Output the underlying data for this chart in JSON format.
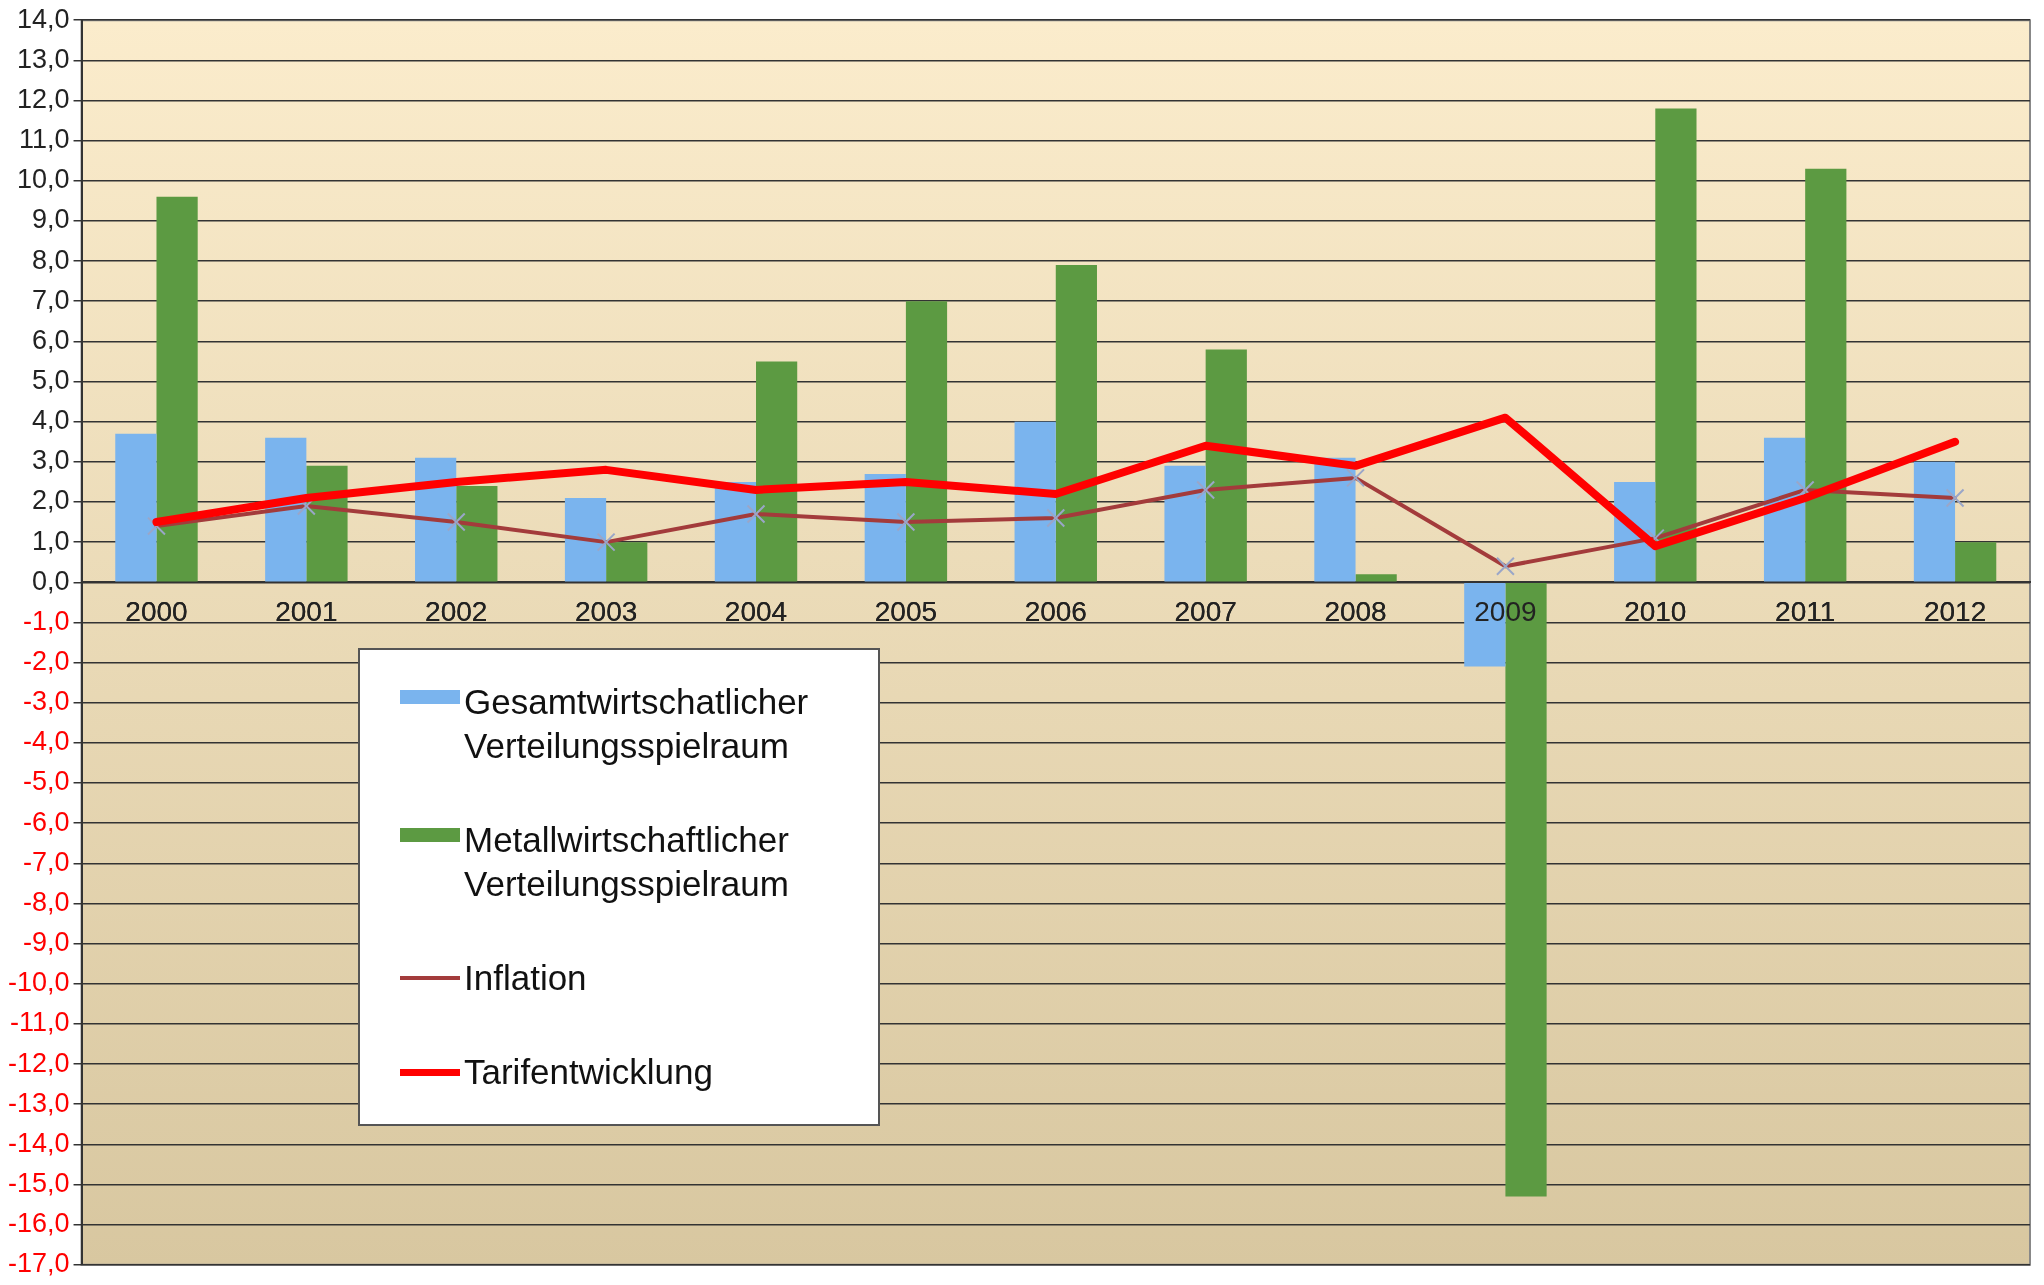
{
  "chart_data": {
    "type": "bar",
    "categories": [
      "2000",
      "2001",
      "2002",
      "2003",
      "2004",
      "2005",
      "2006",
      "2007",
      "2008",
      "2009",
      "2010",
      "2011",
      "2012"
    ],
    "series": [
      {
        "name": "Gesamtwirtschatlicher Verteilungsspielraum",
        "color": "#7ab4ee",
        "values": [
          3.7,
          3.6,
          3.1,
          2.1,
          2.5,
          2.7,
          4.0,
          2.9,
          3.1,
          -2.1,
          2.5,
          3.6,
          3.0
        ]
      },
      {
        "name": "Metallwirtschaftlicher Verteilungsspielraum",
        "color": "#5c9a42",
        "values": [
          9.6,
          2.9,
          2.4,
          1.0,
          5.5,
          7.0,
          7.9,
          5.8,
          0.2,
          -15.3,
          11.8,
          10.3,
          1.0
        ]
      },
      {
        "name": "Inflation",
        "type": "line",
        "color": "#a33b3b",
        "marker": "cross",
        "values": [
          1.4,
          1.9,
          1.5,
          1.0,
          1.7,
          1.5,
          1.6,
          2.3,
          2.6,
          0.4,
          1.1,
          2.3,
          2.1
        ]
      },
      {
        "name": "Tarifentwicklung",
        "type": "line",
        "color": "#ff0000",
        "marker": "none",
        "values": [
          1.5,
          2.1,
          2.5,
          2.8,
          2.3,
          2.5,
          2.2,
          3.4,
          2.9,
          4.1,
          0.9,
          2.1,
          3.5
        ]
      }
    ],
    "ylim": [
      -17,
      14
    ],
    "yticks": [
      {
        "value": -17,
        "label": "-17,0"
      },
      {
        "value": -16,
        "label": "-16,0"
      },
      {
        "value": -15,
        "label": "-15,0"
      },
      {
        "value": -14,
        "label": "-14,0"
      },
      {
        "value": -13,
        "label": "-13,0"
      },
      {
        "value": -12,
        "label": "-12,0"
      },
      {
        "value": -11,
        "label": "-11,0"
      },
      {
        "value": -10,
        "label": "-10,0"
      },
      {
        "value": -9,
        "label": "-9,0"
      },
      {
        "value": -8,
        "label": "-8,0"
      },
      {
        "value": -7,
        "label": "-7,0"
      },
      {
        "value": -6,
        "label": "-6,0"
      },
      {
        "value": -5,
        "label": "-5,0"
      },
      {
        "value": -4,
        "label": "-4,0"
      },
      {
        "value": -3,
        "label": "-3,0"
      },
      {
        "value": -2,
        "label": "-2,0"
      },
      {
        "value": -1,
        "label": "-1,0"
      },
      {
        "value": 0,
        "label": "0,0"
      },
      {
        "value": 1,
        "label": "1,0"
      },
      {
        "value": 2,
        "label": "2,0"
      },
      {
        "value": 3,
        "label": "3,0"
      },
      {
        "value": 4,
        "label": "4,0"
      },
      {
        "value": 5,
        "label": "5,0"
      },
      {
        "value": 6,
        "label": "6,0"
      },
      {
        "value": 7,
        "label": "7,0"
      },
      {
        "value": 8,
        "label": "8,0"
      },
      {
        "value": 9,
        "label": "9,0"
      },
      {
        "value": 10,
        "label": "10,0"
      },
      {
        "value": 11,
        "label": "11,0"
      },
      {
        "value": 12,
        "label": "12,0"
      },
      {
        "value": 13,
        "label": "13,0"
      },
      {
        "value": 14,
        "label": "14,0"
      }
    ],
    "grid": "y",
    "legend": "bottom left"
  }
}
